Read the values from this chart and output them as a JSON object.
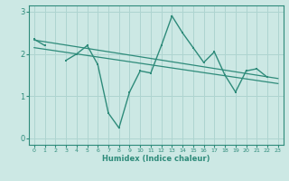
{
  "xlabel": "Humidex (Indice chaleur)",
  "x": [
    0,
    1,
    2,
    3,
    4,
    5,
    6,
    7,
    8,
    9,
    10,
    11,
    12,
    13,
    14,
    15,
    16,
    17,
    18,
    19,
    20,
    21,
    22,
    23
  ],
  "line1": [
    2.35,
    2.2,
    null,
    1.85,
    2.0,
    2.2,
    1.75,
    0.6,
    0.25,
    1.1,
    1.6,
    1.55,
    2.2,
    2.9,
    2.5,
    2.15,
    1.8,
    2.05,
    1.5,
    1.1,
    1.6,
    1.65,
    1.45,
    null
  ],
  "trend1_x": [
    0,
    23
  ],
  "trend1_y": [
    2.33,
    1.42
  ],
  "trend2_x": [
    0,
    23
  ],
  "trend2_y": [
    2.15,
    1.3
  ],
  "bg_color": "#cce8e4",
  "grid_color": "#aed4d0",
  "line_color": "#2e8b7a",
  "ylim": [
    -0.15,
    3.15
  ],
  "xlim": [
    -0.5,
    23.5
  ],
  "yticks": [
    0,
    1,
    2,
    3
  ],
  "xticks": [
    0,
    1,
    2,
    3,
    4,
    5,
    6,
    7,
    8,
    9,
    10,
    11,
    12,
    13,
    14,
    15,
    16,
    17,
    18,
    19,
    20,
    21,
    22,
    23
  ],
  "xlabel_fontsize": 6,
  "ytick_fontsize": 6,
  "xtick_fontsize": 4.5,
  "linewidth": 1.0,
  "markersize": 2.0
}
